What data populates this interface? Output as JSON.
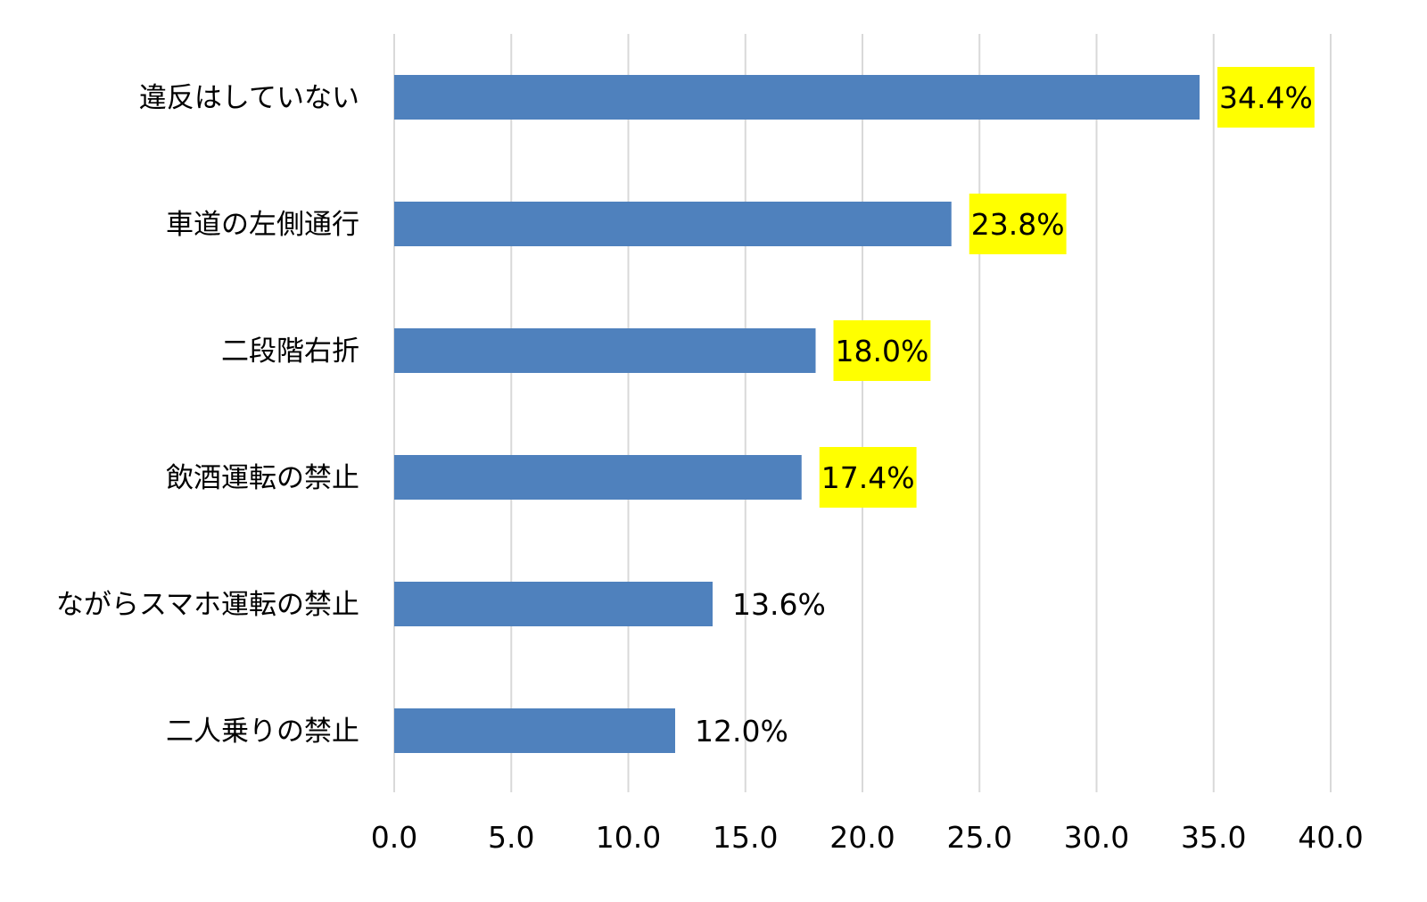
{
  "colors": {
    "bar": "#4f81bd",
    "highlight": "#ffff00",
    "grid": "#d9d9d9",
    "text": "#000000"
  },
  "chart_data": {
    "type": "bar",
    "orientation": "horizontal",
    "categories": [
      "違反はしていない",
      "車道の左側通行",
      "二段階右折",
      "飲酒運転の禁止",
      "ながらスマホ運転の禁止",
      "二人乗りの禁止"
    ],
    "values": [
      34.4,
      23.8,
      18.0,
      17.4,
      13.6,
      12.0
    ],
    "data_labels": [
      "34.4%",
      "23.8%",
      "18.0%",
      "17.4%",
      "13.6%",
      "12.0%"
    ],
    "highlighted": [
      true,
      true,
      true,
      true,
      false,
      false
    ],
    "xlim": [
      0,
      40
    ],
    "x_ticks": [
      0,
      5,
      10,
      15,
      20,
      25,
      30,
      35,
      40
    ],
    "x_tick_labels": [
      "0.0",
      "5.0",
      "10.0",
      "15.0",
      "20.0",
      "25.0",
      "30.0",
      "35.0",
      "40.0"
    ],
    "grid": "vertical",
    "legend": "none",
    "title": "",
    "xlabel": "",
    "ylabel": ""
  }
}
